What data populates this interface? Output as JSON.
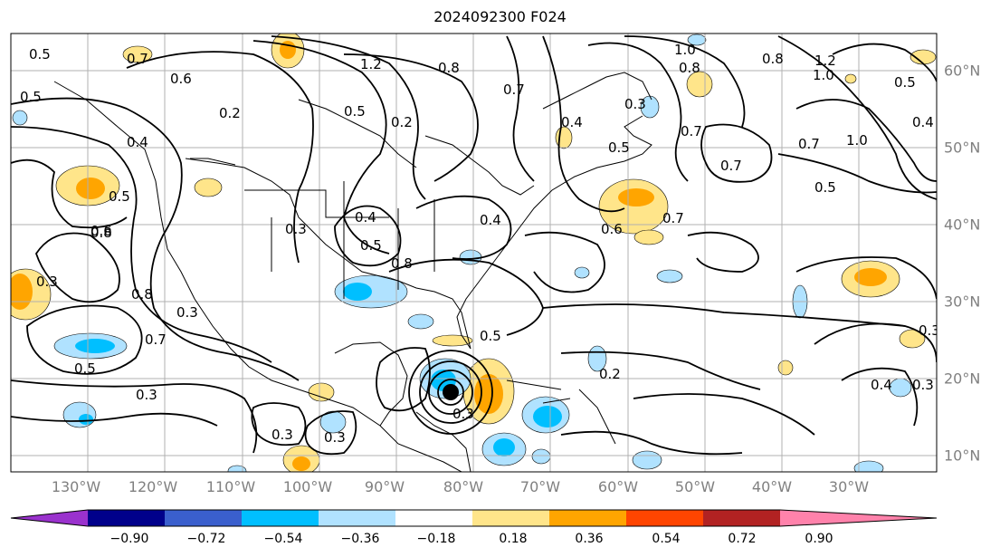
{
  "title": "2024092300 F024",
  "longitude_labels": [
    "130°W",
    "120°W",
    "110°W",
    "100°W",
    "90°W",
    "80°W",
    "70°W",
    "60°W",
    "50°W",
    "40°W",
    "30°W"
  ],
  "latitude_labels": [
    "60°N",
    "50°N",
    "40°N",
    "30°N",
    "20°N",
    "10°N"
  ],
  "colorbar": {
    "ticks": [
      "−0.90",
      "−0.72",
      "−0.54",
      "−0.36",
      "−0.18",
      "0.18",
      "0.36",
      "0.54",
      "0.72",
      "0.90"
    ],
    "colors": [
      "#9a32cd",
      "#00008b",
      "#3a5fcd",
      "#00bfff",
      "#b0e2ff",
      "#ffffff",
      "#ffe58a",
      "#ffa500",
      "#ff4500",
      "#b22222",
      "#ff82ab"
    ]
  },
  "contour_labels": [
    "0.5",
    "0.7",
    "0.6",
    "1.2",
    "0.8",
    "0.7",
    "0.8",
    "1.0",
    "0.8",
    "1.2",
    "1.0",
    "0.5",
    "0.5",
    "0.2",
    "0.5",
    "0.2",
    "0.3",
    "0.4",
    "0.5",
    "0.4",
    "0.7",
    "0.7",
    "0.4",
    "1.0",
    "0.7",
    "0.5",
    "0.5",
    "0.4",
    "0.3",
    "0.4",
    "0.5",
    "0.8",
    "0.8",
    "0.6",
    "0.6",
    "0.7",
    "0.5",
    "0.3",
    "0.8",
    "0.3",
    "0.7",
    "0.5",
    "0.3",
    "0.2",
    "0.3",
    "0.3",
    "0.3",
    "0.4",
    "0.3",
    "0.3"
  ],
  "cyclone_marker": "storm-center-icon"
}
